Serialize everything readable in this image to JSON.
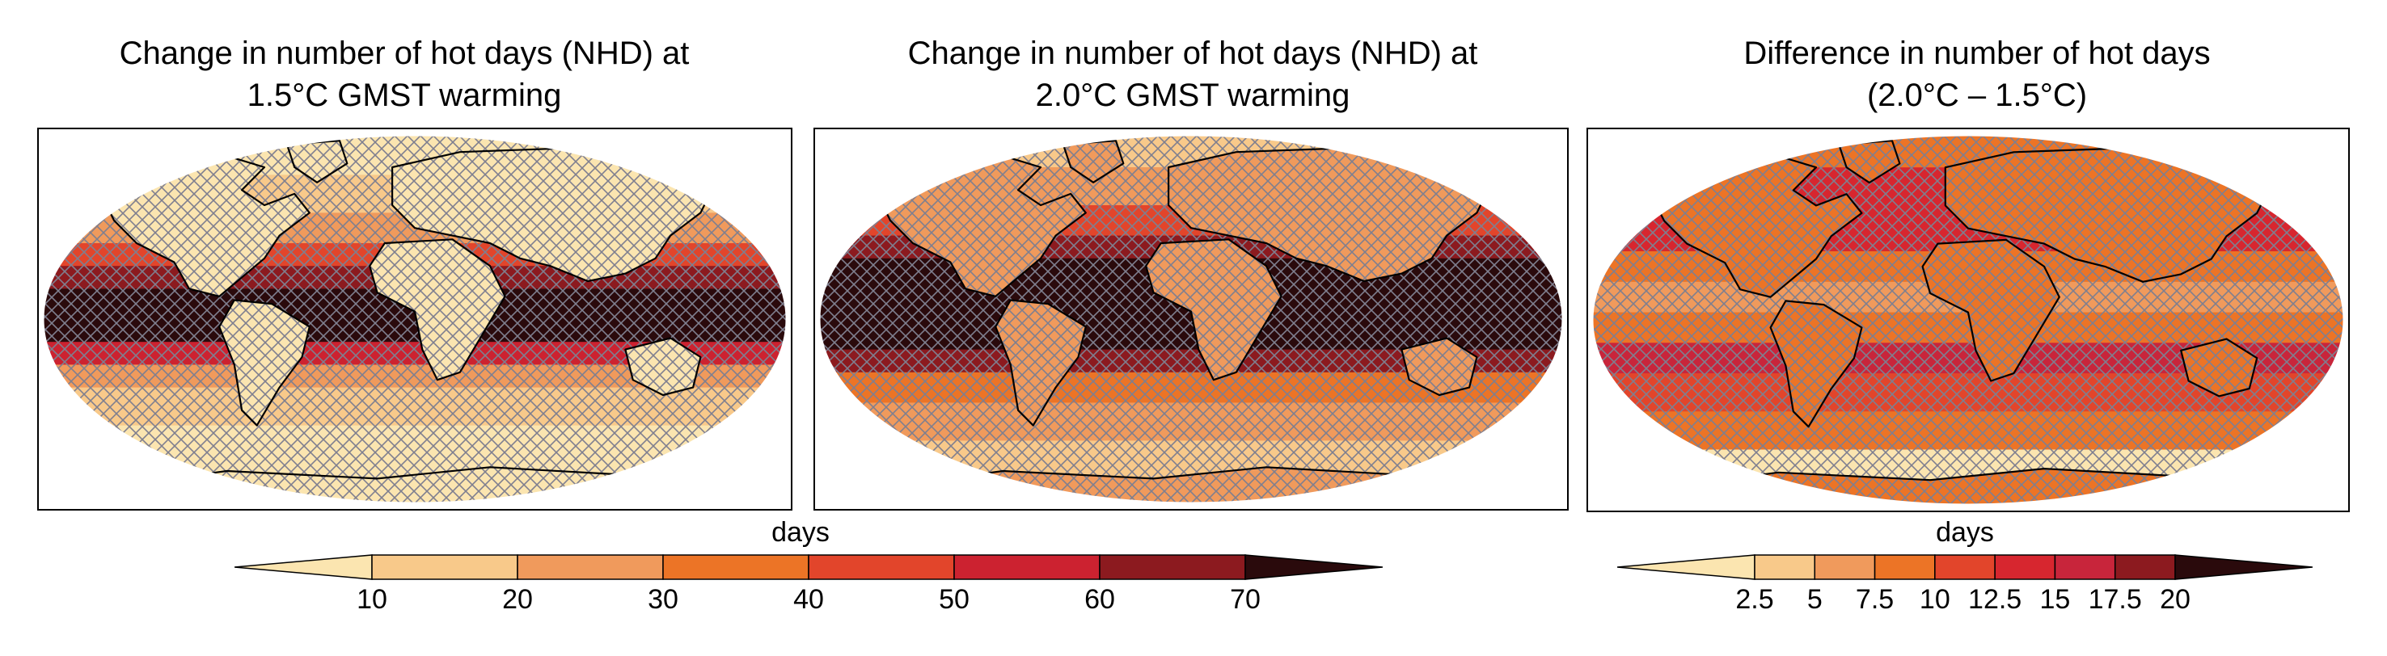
{
  "panels": [
    {
      "id": "a",
      "title_line1": "Change in number of hot days (NHD) at",
      "title_line2": "1.5°C GMST warming"
    },
    {
      "id": "b",
      "title_line1": "Change in number of hot days (NHD) at",
      "title_line2": "2.0°C GMST warming"
    },
    {
      "id": "c",
      "title_line1": "Difference in number of hot days",
      "title_line2": "(2.0°C – 1.5°C)"
    }
  ],
  "colorbar_left": {
    "label": "days",
    "ticks": [
      "10",
      "20",
      "30",
      "40",
      "50",
      "60",
      "70"
    ],
    "colors": [
      "#fbe5b0",
      "#f8c98a",
      "#f09a5c",
      "#ec7426",
      "#e2452b",
      "#cc2230",
      "#8c1a1f",
      "#2a0a0c"
    ]
  },
  "colorbar_right": {
    "label": "days",
    "ticks": [
      "2.5",
      "5",
      "7.5",
      "10",
      "12.5",
      "15",
      "17.5",
      "20"
    ],
    "colors": [
      "#fbe5b0",
      "#f8c98a",
      "#f09a5c",
      "#ec7426",
      "#e2452b",
      "#d7262f",
      "#c8253b",
      "#8c1a1f",
      "#2a0a0c"
    ]
  },
  "colors": {
    "hatch": "#7f7f8f",
    "coast": "#000000",
    "frame": "#000000"
  }
}
